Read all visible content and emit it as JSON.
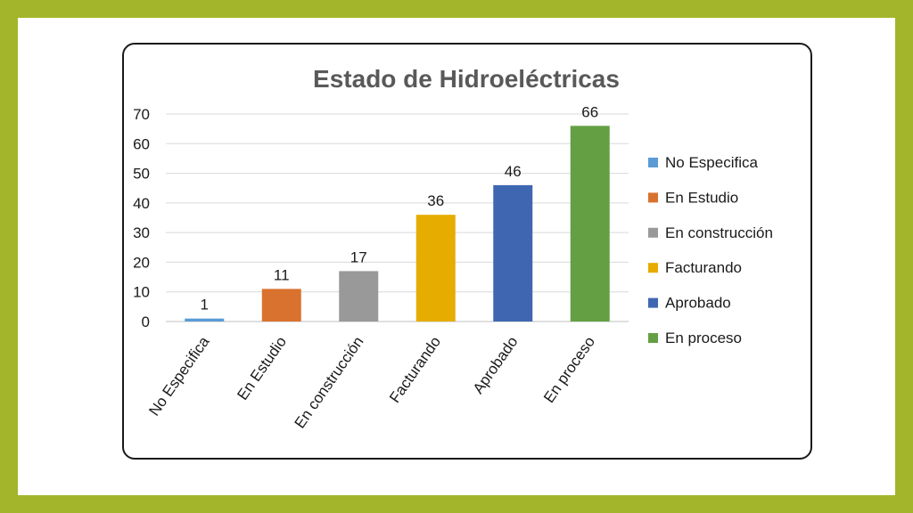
{
  "chart_data": {
    "type": "bar",
    "title": "Estado de Hidroeléctricas",
    "categories": [
      "No Especifica",
      "En Estudio",
      "En construcción",
      "Facturando",
      "Aprobado",
      "En proceso"
    ],
    "values": [
      1,
      11,
      17,
      36,
      46,
      66
    ],
    "colors": [
      "#5b9bd5",
      "#d9722e",
      "#999999",
      "#e6ac00",
      "#3f67b1",
      "#64a043"
    ],
    "ylim": [
      0,
      70
    ],
    "yticks": [
      "0",
      "10",
      "20",
      "30",
      "40",
      "50",
      "60",
      "70"
    ],
    "grid": true,
    "legend": "right",
    "data_labels": true
  }
}
